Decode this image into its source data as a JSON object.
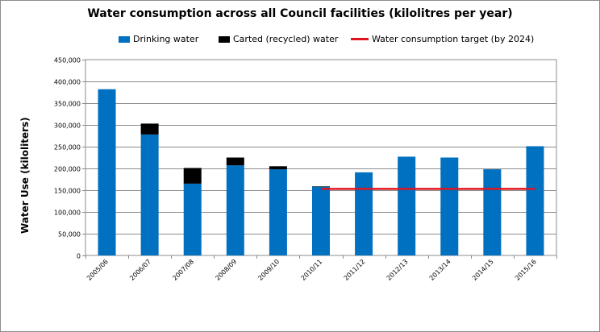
{
  "chart_data": {
    "type": "bar",
    "title": "Water consumption across all Council facilities (kilolitres per year)",
    "ylabel": "Water Use (kiloliters)",
    "xlabel": "",
    "ylim": [
      0,
      450000
    ],
    "ytick_step": 50000,
    "yticks": [
      "0",
      "50,000",
      "100,000",
      "150,000",
      "200,000",
      "250,000",
      "300,000",
      "350,000",
      "400,000",
      "450,000"
    ],
    "grid": true,
    "legend_position": "top",
    "categories": [
      "2005/06",
      "2006/07",
      "2007/08",
      "2008/09",
      "2009/10",
      "2010/11",
      "2011/12",
      "2012/13",
      "2013/14",
      "2014/15",
      "2015/16"
    ],
    "stacked": true,
    "series": [
      {
        "name": "Drinking water",
        "type": "bar",
        "color": "#0070c0",
        "values": [
          382000,
          278000,
          165000,
          207000,
          198000,
          158000,
          191000,
          227000,
          225000,
          198000,
          251000
        ]
      },
      {
        "name": "Carted (recycled) water",
        "type": "bar",
        "color": "#000000",
        "values": [
          0,
          25000,
          36000,
          18000,
          7000,
          1000,
          0,
          0,
          0,
          0,
          0
        ]
      },
      {
        "name": "Water consumption target (by 2024)",
        "type": "line",
        "color": "#e0141e",
        "value": 153000,
        "from_category": "2010/11",
        "to_category": "2015/16"
      }
    ]
  }
}
